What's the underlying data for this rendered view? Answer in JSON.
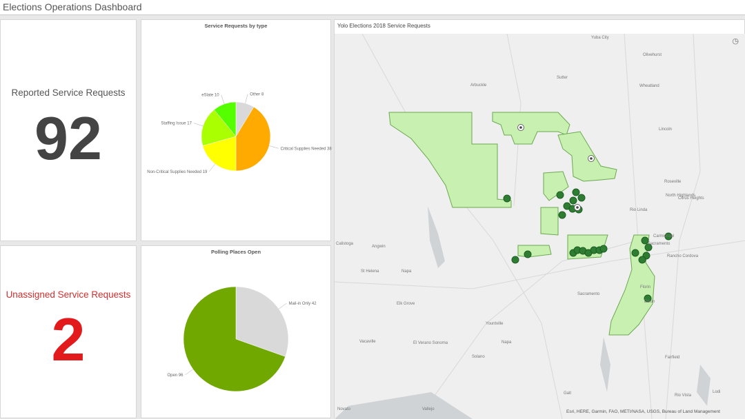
{
  "header": {
    "title": "Elections Operations Dashboard"
  },
  "indicators": [
    {
      "title": "Reported Service Requests",
      "value": "92",
      "color": "#444444"
    },
    {
      "title": "Unassigned Service Requests",
      "value": "2",
      "color": "#e31a1c"
    }
  ],
  "chart_data": [
    {
      "type": "pie",
      "title": "Service Requests by type",
      "slices": [
        {
          "label": "Other 8",
          "name": "Other",
          "value": 8,
          "color": "#d9d9d9"
        },
        {
          "label": "Critical Supplies Needed 38",
          "name": "Critical Supplies Needed",
          "value": 38,
          "color": "#ffaa00"
        },
        {
          "label": "Non-Critical Supplies Needed 19",
          "name": "Non-Critical Supplies Needed",
          "value": 19,
          "color": "#ffff00"
        },
        {
          "label": "Staffing Issue 17",
          "name": "Staffing Issue",
          "value": 17,
          "color": "#aaff00"
        },
        {
          "label": "eSlate 10",
          "name": "eSlate",
          "value": 10,
          "color": "#55ff00"
        }
      ]
    },
    {
      "type": "pie",
      "title": "Polling Places Open",
      "slices": [
        {
          "label": "Mail-in Only 42",
          "name": "Mail-in Only",
          "value": 42,
          "color": "#d9d9d9"
        },
        {
          "label": "Open 96",
          "name": "Open",
          "value": 96,
          "color": "#70a800"
        }
      ]
    }
  ],
  "map": {
    "title": "Yolo Elections 2018 Service Requests",
    "bookmark_icon": "bookmark-icon",
    "attribution": "Esri, HERE, Garmin, FAO, METI/NASA, USGS, Bureau of Land Management",
    "places": [
      "Yuba City",
      "Olivehurst",
      "Arbuckle",
      "Sutter",
      "Wheatland",
      "Lincoln",
      "Roseville",
      "North Highlands",
      "Citrus Heights",
      "Rio Linda",
      "Carmichael",
      "Sacramento",
      "Rancho Cordova",
      "Calistoga",
      "Angwin",
      "St Helena",
      "Napa",
      "Florin",
      "Sacramento",
      "Dixon",
      "Elk Grove",
      "Yountville",
      "Vacaville",
      "El Verano Sonoma",
      "Napa",
      "Solano",
      "Fairfield",
      "Galt",
      "Rio Vista",
      "Lodi",
      "Novato",
      "Vallejo"
    ],
    "polygon_color": "#c8f0b0",
    "marker_color": "#2e7d32"
  }
}
